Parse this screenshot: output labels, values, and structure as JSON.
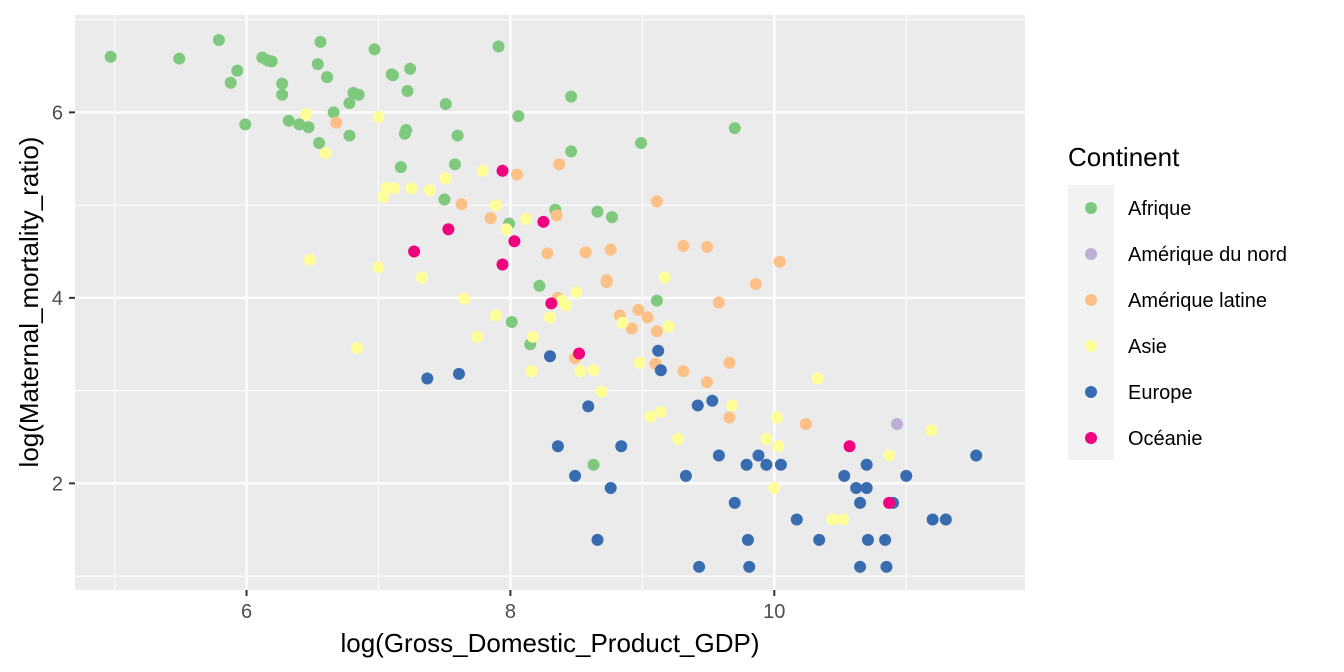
{
  "chart_data": {
    "type": "scatter",
    "title": "",
    "xlabel": "log(Gross_Domestic_Product_GDP)",
    "ylabel": "log(Maternal_mortality_ratio)",
    "xlim": [
      4.7,
      11.9
    ],
    "ylim": [
      0.85,
      7.05
    ],
    "x_ticks": [
      6,
      8,
      10
    ],
    "y_ticks": [
      2,
      4,
      6
    ],
    "x_tick_labels": [
      "6",
      "8",
      "10"
    ],
    "y_tick_labels": [
      "2",
      "4",
      "6"
    ],
    "grid": true,
    "legend": {
      "title": "Continent",
      "position": "right"
    },
    "series": [
      {
        "name": "Afrique",
        "color": "#7fc97f",
        "points": [
          [
            4.97,
            6.6
          ],
          [
            5.49,
            6.58
          ],
          [
            5.79,
            6.78
          ],
          [
            5.88,
            6.32
          ],
          [
            5.93,
            6.45
          ],
          [
            5.99,
            5.87
          ],
          [
            6.12,
            6.59
          ],
          [
            6.16,
            6.56
          ],
          [
            6.19,
            6.55
          ],
          [
            6.27,
            6.31
          ],
          [
            6.27,
            6.19
          ],
          [
            6.32,
            5.91
          ],
          [
            6.4,
            5.87
          ],
          [
            6.47,
            5.84
          ],
          [
            6.54,
            6.52
          ],
          [
            6.56,
            6.76
          ],
          [
            6.55,
            5.67
          ],
          [
            6.61,
            6.38
          ],
          [
            6.66,
            6.0
          ],
          [
            6.78,
            5.75
          ],
          [
            6.78,
            6.1
          ],
          [
            6.81,
            6.21
          ],
          [
            6.85,
            6.19
          ],
          [
            6.97,
            6.68
          ],
          [
            7.1,
            6.41
          ],
          [
            7.11,
            6.4
          ],
          [
            7.17,
            5.41
          ],
          [
            7.2,
            5.77
          ],
          [
            7.21,
            5.81
          ],
          [
            7.24,
            6.47
          ],
          [
            7.22,
            6.23
          ],
          [
            7.5,
            5.06
          ],
          [
            7.51,
            6.09
          ],
          [
            7.58,
            5.44
          ],
          [
            7.6,
            5.75
          ],
          [
            7.91,
            6.71
          ],
          [
            7.99,
            4.8
          ],
          [
            8.06,
            5.96
          ],
          [
            8.15,
            3.5
          ],
          [
            8.01,
            3.74
          ],
          [
            8.22,
            4.13
          ],
          [
            8.34,
            4.95
          ],
          [
            8.46,
            6.17
          ],
          [
            8.46,
            5.58
          ],
          [
            8.66,
            4.93
          ],
          [
            8.77,
            4.87
          ],
          [
            8.63,
            2.2
          ],
          [
            8.99,
            5.67
          ],
          [
            9.11,
            3.97
          ],
          [
            9.7,
            5.83
          ]
        ]
      },
      {
        "name": "Amérique du nord",
        "color": "#beaed4",
        "points": [
          [
            10.93,
            2.64
          ]
        ]
      },
      {
        "name": "Amérique latine",
        "color": "#fdc086",
        "points": [
          [
            6.68,
            5.89
          ],
          [
            7.63,
            5.01
          ],
          [
            7.85,
            4.86
          ],
          [
            8.05,
            5.33
          ],
          [
            8.37,
            5.44
          ],
          [
            8.28,
            4.48
          ],
          [
            8.35,
            4.89
          ],
          [
            8.36,
            4.0
          ],
          [
            8.57,
            4.49
          ],
          [
            8.73,
            4.19
          ],
          [
            8.73,
            4.17
          ],
          [
            8.76,
            4.52
          ],
          [
            8.83,
            3.81
          ],
          [
            8.92,
            3.67
          ],
          [
            8.97,
            3.87
          ],
          [
            9.04,
            3.79
          ],
          [
            9.11,
            3.64
          ],
          [
            9.1,
            3.29
          ],
          [
            9.11,
            5.04
          ],
          [
            9.31,
            4.56
          ],
          [
            9.31,
            3.21
          ],
          [
            9.49,
            4.55
          ],
          [
            9.49,
            3.09
          ],
          [
            9.58,
            3.95
          ],
          [
            9.66,
            3.3
          ],
          [
            9.66,
            2.71
          ],
          [
            9.86,
            4.15
          ],
          [
            10.04,
            4.39
          ],
          [
            10.24,
            2.64
          ],
          [
            8.49,
            3.35
          ]
        ]
      },
      {
        "name": "Asie",
        "color": "#ffff99",
        "points": [
          [
            6.45,
            5.98
          ],
          [
            6.48,
            4.41
          ],
          [
            6.6,
            5.56
          ],
          [
            6.84,
            3.46
          ],
          [
            7.0,
            5.95
          ],
          [
            7.0,
            4.33
          ],
          [
            7.04,
            5.09
          ],
          [
            7.06,
            5.19
          ],
          [
            7.12,
            5.18
          ],
          [
            7.25,
            5.18
          ],
          [
            7.33,
            4.22
          ],
          [
            7.39,
            5.16
          ],
          [
            7.51,
            5.29
          ],
          [
            7.65,
            3.99
          ],
          [
            7.75,
            3.58
          ],
          [
            7.79,
            5.37
          ],
          [
            7.89,
            5.0
          ],
          [
            7.89,
            3.81
          ],
          [
            7.97,
            4.74
          ],
          [
            8.12,
            4.85
          ],
          [
            8.17,
            3.58
          ],
          [
            8.16,
            3.21
          ],
          [
            8.3,
            3.79
          ],
          [
            8.39,
            3.97
          ],
          [
            8.42,
            3.92
          ],
          [
            8.5,
            4.06
          ],
          [
            8.53,
            3.21
          ],
          [
            8.63,
            3.22
          ],
          [
            8.69,
            2.99
          ],
          [
            8.85,
            3.73
          ],
          [
            8.98,
            3.3
          ],
          [
            9.06,
            2.72
          ],
          [
            9.14,
            2.77
          ],
          [
            9.17,
            4.22
          ],
          [
            9.2,
            3.69
          ],
          [
            9.27,
            2.48
          ],
          [
            9.68,
            2.84
          ],
          [
            9.94,
            2.48
          ],
          [
            10.0,
            1.95
          ],
          [
            10.02,
            2.71
          ],
          [
            10.03,
            2.4
          ],
          [
            10.33,
            3.13
          ],
          [
            10.44,
            1.61
          ],
          [
            10.52,
            1.61
          ],
          [
            10.62,
            1.95
          ],
          [
            10.87,
            2.3
          ],
          [
            11.19,
            2.57
          ]
        ]
      },
      {
        "name": "Europe",
        "color": "#386cb0",
        "points": [
          [
            7.37,
            3.13
          ],
          [
            7.61,
            3.18
          ],
          [
            8.3,
            3.37
          ],
          [
            8.36,
            2.4
          ],
          [
            8.49,
            2.08
          ],
          [
            8.59,
            2.83
          ],
          [
            8.66,
            1.39
          ],
          [
            8.76,
            1.95
          ],
          [
            8.84,
            2.4
          ],
          [
            9.12,
            3.43
          ],
          [
            9.14,
            3.22
          ],
          [
            9.33,
            2.08
          ],
          [
            9.42,
            2.84
          ],
          [
            9.43,
            1.1
          ],
          [
            9.53,
            2.89
          ],
          [
            9.58,
            2.3
          ],
          [
            9.7,
            1.79
          ],
          [
            9.79,
            2.2
          ],
          [
            9.8,
            1.39
          ],
          [
            9.81,
            1.1
          ],
          [
            9.88,
            2.3
          ],
          [
            9.94,
            2.2
          ],
          [
            10.05,
            2.2
          ],
          [
            10.17,
            1.61
          ],
          [
            10.34,
            1.39
          ],
          [
            10.53,
            2.08
          ],
          [
            10.62,
            1.95
          ],
          [
            10.65,
            1.1
          ],
          [
            10.65,
            1.79
          ],
          [
            10.7,
            2.2
          ],
          [
            10.7,
            1.95
          ],
          [
            10.71,
            1.39
          ],
          [
            10.84,
            1.39
          ],
          [
            10.85,
            1.1
          ],
          [
            10.9,
            1.79
          ],
          [
            11.0,
            2.08
          ],
          [
            11.2,
            1.61
          ],
          [
            11.3,
            1.61
          ],
          [
            11.53,
            2.3
          ]
        ]
      },
      {
        "name": "Océanie",
        "color": "#f0027f",
        "points": [
          [
            7.27,
            4.5
          ],
          [
            7.53,
            4.74
          ],
          [
            7.94,
            4.36
          ],
          [
            7.94,
            5.37
          ],
          [
            8.03,
            4.61
          ],
          [
            8.25,
            4.82
          ],
          [
            8.31,
            3.94
          ],
          [
            8.52,
            3.4
          ],
          [
            10.57,
            2.4
          ],
          [
            10.87,
            1.79
          ]
        ]
      }
    ]
  }
}
